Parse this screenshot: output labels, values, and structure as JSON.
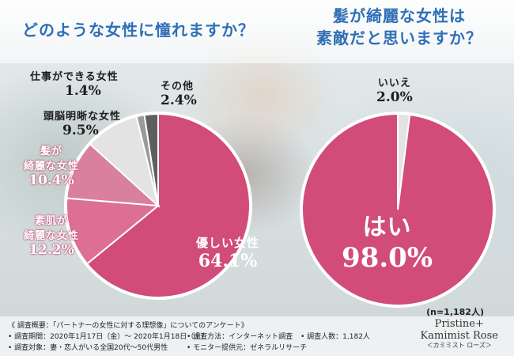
{
  "titles": {
    "left": "どのような女性に憧れますか？",
    "right_line1": "髪が綺麗な女性は",
    "right_line2": "素敵だと思いますか？"
  },
  "chart_data": [
    {
      "type": "pie",
      "title": "どのような女性に憧れますか？",
      "categories": [
        "優しい女性",
        "素肌が綺麗な女性",
        "髪が綺麗な女性",
        "頭脳明晰な女性",
        "仕事ができる女性",
        "その他"
      ],
      "values": [
        64.1,
        12.2,
        10.4,
        9.5,
        1.4,
        2.4
      ],
      "value_labels": [
        "64.1%",
        "12.2%",
        "10.4%",
        "9.5%",
        "1.4%",
        "2.4%"
      ],
      "colors": [
        "#d14c78",
        "#dd6f94",
        "#d9809f",
        "#e3e3e3",
        "#9a9a9a",
        "#5e5e5e"
      ]
    },
    {
      "type": "pie",
      "title": "髪が綺麗な女性は素敵だと思いますか？",
      "categories": [
        "はい",
        "いいえ"
      ],
      "values": [
        98.0,
        2.0
      ],
      "value_labels": [
        "98.0%",
        "2.0%"
      ],
      "colors": [
        "#d14c78",
        "#e3e3e3"
      ]
    }
  ],
  "sample_note": "(n=1,182人)",
  "footer": {
    "line1": "《 調査概要：「パートナーの女性に対する理想像」についてのアンケート》",
    "period": "• 調査期間：2020年1月17日（金）～ 2020年1月18日（土）",
    "method": "• 調査方法：インターネット調査",
    "count": "• 調査人数：1,182人",
    "target": "• 調査対象：妻・恋人がいる全国20代～50代男性",
    "provider": "• モニター提供元：ゼネラルリサーチ"
  },
  "brand": {
    "line1": "Pristine+",
    "line2": "Kamimist Rose",
    "line3": "＜カミミスト ローズ＞"
  }
}
